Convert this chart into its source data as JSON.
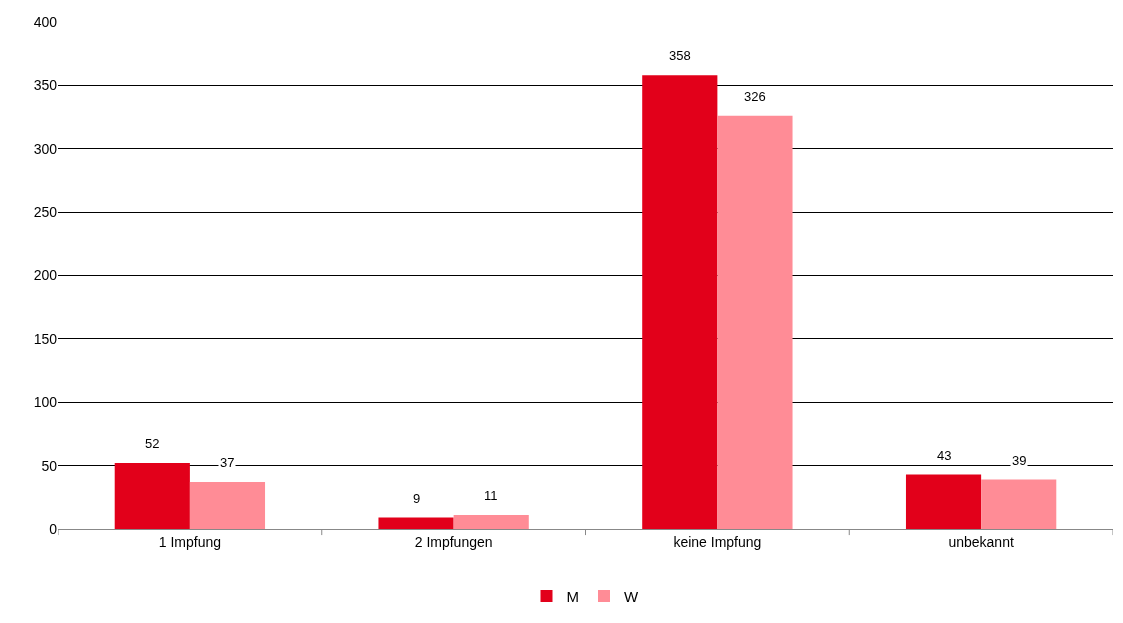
{
  "chart_data": {
    "type": "bar",
    "categories": [
      "1 Impfung",
      "2 Impfungen",
      "keine Impfung",
      "unbekannt"
    ],
    "series": [
      {
        "name": "M",
        "color": "#e2001a",
        "values": [
          52,
          9,
          358,
          43
        ]
      },
      {
        "name": "W",
        "color": "#ff8c96",
        "values": [
          37,
          11,
          326,
          39
        ]
      }
    ],
    "ylim": [
      0,
      400
    ],
    "yticks": [
      0,
      50,
      100,
      150,
      200,
      250,
      300,
      350,
      400
    ],
    "grid": "y",
    "legend": "bottom",
    "data_labels": true
  }
}
